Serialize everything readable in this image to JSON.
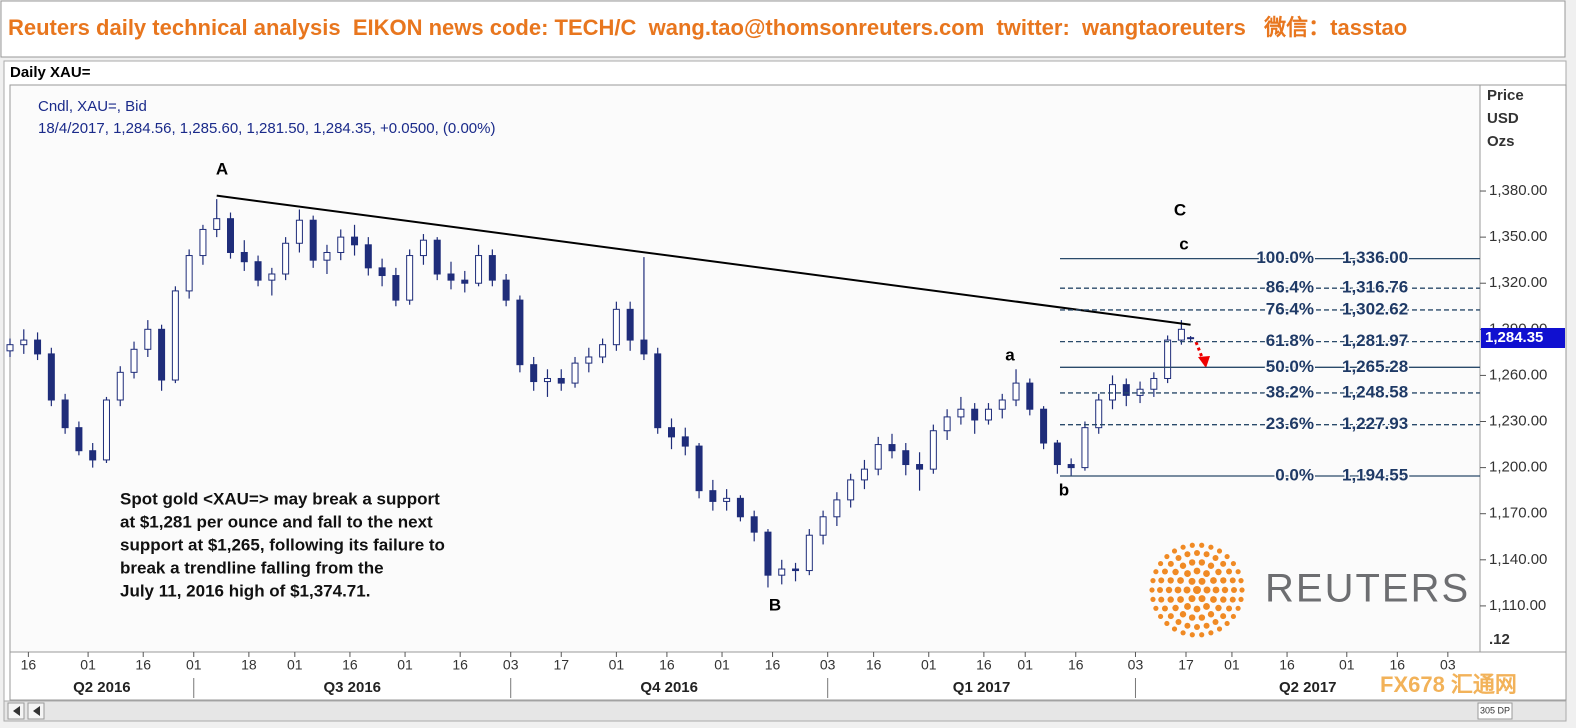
{
  "header": "Reuters daily technical analysis  EIKON news code: TECH/C  wang.tao@thomsonreuters.com  twitter:  wangtaoreuters   微信：tasstao",
  "panel_title": "Daily XAU=",
  "chart_data": {
    "type": "candlestick",
    "info": [
      "Cndl, XAU=, Bid",
      "18/4/2017, 1,284.56, 1,285.60, 1,281.50, 1,284.35, +0.0500, (0.00%)"
    ],
    "y_axis_label": [
      "Price",
      "USD",
      "Ozs"
    ],
    "x": [
      0,
      3,
      6,
      9,
      12,
      15,
      18,
      21,
      24,
      27,
      30,
      33,
      36,
      39,
      42,
      45,
      48,
      51,
      54,
      57,
      60,
      63,
      66,
      69,
      72,
      75,
      78,
      81,
      84,
      87,
      90,
      93,
      96,
      99,
      102,
      105,
      108,
      111,
      114,
      117,
      120,
      123,
      126,
      129,
      132,
      135,
      138,
      141,
      144,
      147,
      150,
      153,
      156,
      159,
      162,
      165,
      168,
      171,
      174,
      177,
      180,
      183,
      186,
      189,
      192,
      195,
      198,
      201,
      204,
      207,
      210,
      213,
      216,
      219,
      222,
      225,
      228,
      231,
      234,
      237,
      240,
      243,
      246,
      249,
      252,
      255,
      257
    ],
    "open": [
      1276,
      1280,
      1283,
      1274,
      1244,
      1226,
      1211,
      1205,
      1244,
      1262,
      1277,
      1290,
      1257,
      1315,
      1338,
      1355,
      1362,
      1340,
      1334,
      1322,
      1326,
      1346,
      1361,
      1335,
      1340,
      1350,
      1345,
      1330,
      1325,
      1309,
      1338,
      1348,
      1326,
      1322,
      1320,
      1338,
      1322,
      1309,
      1267,
      1256,
      1258,
      1255,
      1268,
      1272,
      1280,
      1303,
      1283,
      1274,
      1226,
      1220,
      1214,
      1185,
      1178,
      1180,
      1168,
      1158,
      1130,
      1134,
      1133,
      1156,
      1168,
      1179,
      1192,
      1199,
      1215,
      1211,
      1202,
      1199,
      1224,
      1233,
      1238,
      1231,
      1238,
      1244,
      1255,
      1238,
      1216,
      1202,
      1200,
      1226,
      1244,
      1254,
      1247,
      1251,
      1258,
      1283,
      1284.56
    ],
    "high": [
      1284,
      1290,
      1288,
      1278,
      1248,
      1230,
      1216,
      1246,
      1266,
      1282,
      1296,
      1293,
      1318,
      1342,
      1358,
      1374.71,
      1366,
      1348,
      1338,
      1330,
      1350,
      1368,
      1364,
      1345,
      1355,
      1358,
      1350,
      1336,
      1330,
      1342,
      1352,
      1350,
      1334,
      1328,
      1345,
      1342,
      1326,
      1312,
      1272,
      1264,
      1264,
      1272,
      1278,
      1284,
      1308,
      1308,
      1337,
      1278,
      1232,
      1226,
      1216,
      1192,
      1186,
      1182,
      1172,
      1160,
      1140,
      1138,
      1160,
      1172,
      1184,
      1196,
      1205,
      1220,
      1222,
      1216,
      1210,
      1228,
      1238,
      1246,
      1242,
      1242,
      1248,
      1264,
      1258,
      1240,
      1218,
      1206,
      1230,
      1248,
      1260,
      1258,
      1256,
      1262,
      1286,
      1296,
      1285.6
    ],
    "low": [
      1272,
      1274,
      1270,
      1240,
      1222,
      1208,
      1200,
      1203,
      1240,
      1258,
      1272,
      1250,
      1255,
      1310,
      1332,
      1350,
      1336,
      1328,
      1318,
      1312,
      1322,
      1340,
      1330,
      1326,
      1335,
      1338,
      1325,
      1318,
      1305,
      1306,
      1332,
      1322,
      1316,
      1314,
      1318,
      1318,
      1305,
      1262,
      1250,
      1246,
      1250,
      1252,
      1262,
      1268,
      1276,
      1276,
      1270,
      1222,
      1212,
      1208,
      1180,
      1172,
      1172,
      1165,
      1152,
      1122,
      1124,
      1126,
      1130,
      1150,
      1162,
      1174,
      1186,
      1195,
      1206,
      1195,
      1185,
      1196,
      1218,
      1228,
      1222,
      1228,
      1232,
      1240,
      1234,
      1212,
      1196,
      1194.55,
      1198,
      1222,
      1238,
      1240,
      1242,
      1246,
      1255,
      1280,
      1281.5
    ],
    "close": [
      1280,
      1283,
      1274,
      1244,
      1226,
      1211,
      1205,
      1244,
      1262,
      1277,
      1290,
      1257,
      1315,
      1338,
      1355,
      1362,
      1340,
      1334,
      1322,
      1326,
      1346,
      1361,
      1335,
      1340,
      1350,
      1345,
      1330,
      1325,
      1309,
      1338,
      1348,
      1326,
      1322,
      1320,
      1338,
      1322,
      1309,
      1267,
      1256,
      1258,
      1255,
      1268,
      1272,
      1280,
      1303,
      1283,
      1274,
      1226,
      1220,
      1214,
      1185,
      1178,
      1180,
      1168,
      1158,
      1130,
      1134,
      1133,
      1156,
      1168,
      1179,
      1192,
      1199,
      1215,
      1211,
      1202,
      1199,
      1224,
      1233,
      1238,
      1231,
      1238,
      1244,
      1255,
      1238,
      1216,
      1202,
      1200,
      1226,
      1244,
      1254,
      1247,
      1251,
      1258,
      1283,
      1290,
      1284.35
    ],
    "up_color": "#ffffff",
    "down_color": "#1f2d7a",
    "edge_color": "#1f2d7a",
    "xlim": [
      0,
      320
    ],
    "xticks": [
      {
        "value": 4,
        "label": "16"
      },
      {
        "value": 17,
        "label": "01"
      },
      {
        "value": 29,
        "label": "16"
      },
      {
        "value": 40,
        "label": "01"
      },
      {
        "value": 52,
        "label": "18"
      },
      {
        "value": 62,
        "label": "01"
      },
      {
        "value": 74,
        "label": "16"
      },
      {
        "value": 86,
        "label": "01"
      },
      {
        "value": 98,
        "label": "16"
      },
      {
        "value": 109,
        "label": "03"
      },
      {
        "value": 120,
        "label": "17"
      },
      {
        "value": 132,
        "label": "01"
      },
      {
        "value": 143,
        "label": "16"
      },
      {
        "value": 155,
        "label": "01"
      },
      {
        "value": 166,
        "label": "16"
      },
      {
        "value": 178,
        "label": "03"
      },
      {
        "value": 188,
        "label": "16"
      },
      {
        "value": 200,
        "label": "01"
      },
      {
        "value": 212,
        "label": "16"
      },
      {
        "value": 221,
        "label": "01"
      },
      {
        "value": 232,
        "label": "16"
      },
      {
        "value": 245,
        "label": "03"
      },
      {
        "value": 256,
        "label": "17"
      },
      {
        "value": 266,
        "label": "01"
      },
      {
        "value": 278,
        "label": "16"
      },
      {
        "value": 291,
        "label": "01"
      },
      {
        "value": 302,
        "label": "16"
      },
      {
        "value": 313,
        "label": "03"
      }
    ],
    "periods": [
      "Q2 2016",
      "Q3 2016",
      "Q4 2016",
      "Q1 2017",
      "Q2 2017"
    ],
    "period_starts": [
      40,
      109,
      178,
      245
    ],
    "ylim": [
      1080,
      1449
    ],
    "yticks": [
      {
        "value": 1110,
        "label": "1,110.00"
      },
      {
        "value": 1140,
        "label": "1,140.00"
      },
      {
        "value": 1170,
        "label": "1,170.00"
      },
      {
        "value": 1200,
        "label": "1,200.00"
      },
      {
        "value": 1230,
        "label": "1,230.00"
      },
      {
        "value": 1260,
        "label": "1,260.00"
      },
      {
        "value": 1290,
        "label": "1,290.00"
      },
      {
        "value": 1320,
        "label": "1,320.00"
      },
      {
        "value": 1350,
        "label": "1,350.00"
      },
      {
        "value": 1380,
        "label": "1,380.00"
      }
    ],
    "grid": false,
    "last_price": {
      "value": 1284.35,
      "label": "1,284.35"
    },
    "trendline": {
      "x": [
        45,
        257
      ],
      "y": [
        1377,
        1293
      ]
    },
    "fib_levels": {
      "ratios": [
        "100.0%",
        "86.4%",
        "76.4%",
        "61.8%",
        "50.0%",
        "38.2%",
        "23.6%",
        "0.0%"
      ],
      "values": [
        1336.0,
        1316.76,
        1302.62,
        1281.97,
        1265.28,
        1248.58,
        1227.93,
        1194.55
      ],
      "value_labels": [
        "1,336.00",
        "1,316.76",
        "1,302.62",
        "1,281.97",
        "1,265.28",
        "1,248.58",
        "1,227.93",
        "1,194.55"
      ],
      "solid": [
        true,
        false,
        false,
        false,
        true,
        false,
        false,
        true
      ]
    },
    "wave_labels": [
      "A",
      "B",
      "C",
      "a",
      "b",
      "c"
    ],
    "commentary": [
      "Spot gold <XAU=> may break a support",
      "at $1,281 per ounce and fall to the next",
      "support at $1,265, following its failure to",
      "break a trendline falling from  the",
      "July 11, 2016 high of $1,374.71."
    ],
    "corner_label": ".12"
  },
  "logo": "REUTERS",
  "watermark": "FX678 汇通网",
  "scroll_label": "305 DP"
}
